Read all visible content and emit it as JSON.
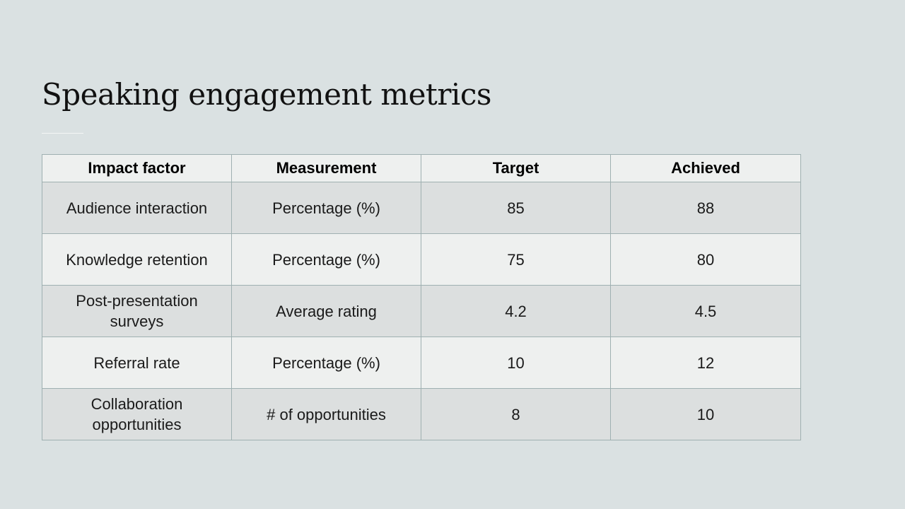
{
  "slide": {
    "title": "Speaking engagement metrics"
  },
  "table": {
    "headers": [
      "Impact factor",
      "Measurement",
      "Target",
      "Achieved"
    ],
    "rows": [
      [
        "Audience interaction",
        "Percentage (%)",
        "85",
        "88"
      ],
      [
        "Knowledge retention",
        "Percentage (%)",
        "75",
        "80"
      ],
      [
        "Post-presentation surveys",
        "Average rating",
        "4.2",
        "4.5"
      ],
      [
        "Referral rate",
        "Percentage (%)",
        "10",
        "12"
      ],
      [
        "Collaboration opportunities",
        "# of opportunities",
        "8",
        "10"
      ]
    ]
  },
  "colors": {
    "background": "#dae1e2",
    "row_dark": "#dcdfdf",
    "row_light": "#eef0ef",
    "border": "#9fb0b1"
  }
}
